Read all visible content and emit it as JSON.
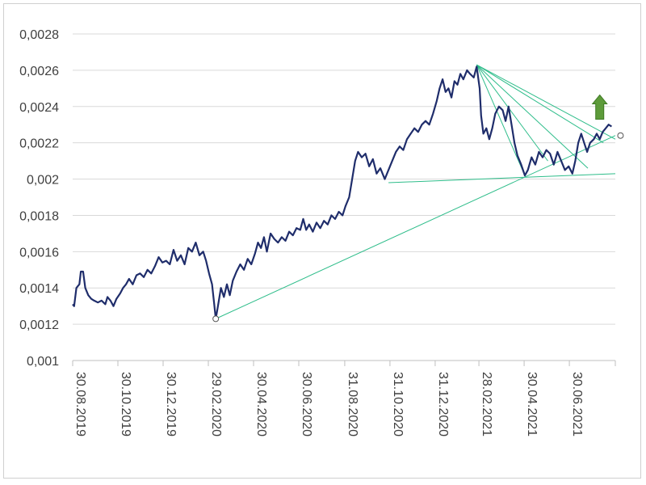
{
  "chart_data": {
    "type": "line",
    "title": "",
    "xlabel": "",
    "ylabel": "",
    "ylim": [
      0.001,
      0.0028
    ],
    "y_ticks": [
      "0,001",
      "0,0012",
      "0,0014",
      "0,0016",
      "0,0018",
      "0,002",
      "0,0022",
      "0,0024",
      "0,0026",
      "0,0028"
    ],
    "y_tick_values": [
      0.001,
      0.0012,
      0.0014,
      0.0016,
      0.0018,
      0.002,
      0.0022,
      0.0024,
      0.0026,
      0.0028
    ],
    "xlim": [
      "2019-08-30",
      "2021-08-31"
    ],
    "x_ticks": [
      {
        "label": "30.08.2019",
        "date": "2019-08-30"
      },
      {
        "label": "30.10.2019",
        "date": "2019-10-30"
      },
      {
        "label": "30.12.2019",
        "date": "2019-12-30"
      },
      {
        "label": "29.02.2020",
        "date": "2020-02-29"
      },
      {
        "label": "30.04.2020",
        "date": "2020-04-30"
      },
      {
        "label": "30.06.2020",
        "date": "2020-06-30"
      },
      {
        "label": "31.08.2020",
        "date": "2020-08-31"
      },
      {
        "label": "31.10.2020",
        "date": "2020-10-31"
      },
      {
        "label": "31.12.2020",
        "date": "2020-12-31"
      },
      {
        "label": "28.02.2021",
        "date": "2021-02-28"
      },
      {
        "label": "30.04.2021",
        "date": "2021-04-30"
      },
      {
        "label": "30.06.2021",
        "date": "2021-06-30"
      }
    ],
    "grid": true,
    "legend": "none",
    "series": [
      {
        "color": "#1f2d6b",
        "points": [
          [
            "2019-08-30",
            0.00131
          ],
          [
            "2019-09-01",
            0.0013
          ],
          [
            "2019-09-04",
            0.0014
          ],
          [
            "2019-09-08",
            0.00142
          ],
          [
            "2019-09-10",
            0.00149
          ],
          [
            "2019-09-13",
            0.00149
          ],
          [
            "2019-09-16",
            0.0014
          ],
          [
            "2019-09-20",
            0.00136
          ],
          [
            "2019-09-24",
            0.00134
          ],
          [
            "2019-09-28",
            0.00133
          ],
          [
            "2019-10-03",
            0.00132
          ],
          [
            "2019-10-08",
            0.00133
          ],
          [
            "2019-10-13",
            0.00131
          ],
          [
            "2019-10-16",
            0.00135
          ],
          [
            "2019-10-20",
            0.00133
          ],
          [
            "2019-10-24",
            0.0013
          ],
          [
            "2019-10-28",
            0.00134
          ],
          [
            "2019-11-02",
            0.00137
          ],
          [
            "2019-11-06",
            0.0014
          ],
          [
            "2019-11-10",
            0.00142
          ],
          [
            "2019-11-14",
            0.00145
          ],
          [
            "2019-11-19",
            0.00142
          ],
          [
            "2019-11-24",
            0.00147
          ],
          [
            "2019-11-29",
            0.00148
          ],
          [
            "2019-12-04",
            0.00146
          ],
          [
            "2019-12-09",
            0.0015
          ],
          [
            "2019-12-14",
            0.00148
          ],
          [
            "2019-12-19",
            0.00152
          ],
          [
            "2019-12-24",
            0.00157
          ],
          [
            "2019-12-29",
            0.00154
          ],
          [
            "2020-01-03",
            0.00155
          ],
          [
            "2020-01-08",
            0.00153
          ],
          [
            "2020-01-13",
            0.00161
          ],
          [
            "2020-01-18",
            0.00155
          ],
          [
            "2020-01-23",
            0.00158
          ],
          [
            "2020-01-28",
            0.00153
          ],
          [
            "2020-02-02",
            0.00162
          ],
          [
            "2020-02-07",
            0.0016
          ],
          [
            "2020-02-12",
            0.00165
          ],
          [
            "2020-02-17",
            0.00158
          ],
          [
            "2020-02-22",
            0.0016
          ],
          [
            "2020-02-26",
            0.00155
          ],
          [
            "2020-03-01",
            0.00148
          ],
          [
            "2020-03-05",
            0.00142
          ],
          [
            "2020-03-08",
            0.00131
          ],
          [
            "2020-03-10",
            0.00123
          ],
          [
            "2020-03-13",
            0.0013
          ],
          [
            "2020-03-17",
            0.0014
          ],
          [
            "2020-03-21",
            0.00135
          ],
          [
            "2020-03-25",
            0.00142
          ],
          [
            "2020-03-29",
            0.00136
          ],
          [
            "2020-04-02",
            0.00144
          ],
          [
            "2020-04-07",
            0.00149
          ],
          [
            "2020-04-12",
            0.00153
          ],
          [
            "2020-04-17",
            0.0015
          ],
          [
            "2020-04-22",
            0.00156
          ],
          [
            "2020-04-27",
            0.00153
          ],
          [
            "2020-05-02",
            0.00159
          ],
          [
            "2020-05-06",
            0.00165
          ],
          [
            "2020-05-10",
            0.00162
          ],
          [
            "2020-05-14",
            0.00168
          ],
          [
            "2020-05-18",
            0.0016
          ],
          [
            "2020-05-23",
            0.0017
          ],
          [
            "2020-05-28",
            0.00167
          ],
          [
            "2020-06-02",
            0.00165
          ],
          [
            "2020-06-07",
            0.00168
          ],
          [
            "2020-06-12",
            0.00166
          ],
          [
            "2020-06-17",
            0.00171
          ],
          [
            "2020-06-22",
            0.00169
          ],
          [
            "2020-06-27",
            0.00173
          ],
          [
            "2020-07-02",
            0.00172
          ],
          [
            "2020-07-06",
            0.00178
          ],
          [
            "2020-07-10",
            0.00172
          ],
          [
            "2020-07-14",
            0.00175
          ],
          [
            "2020-07-19",
            0.00171
          ],
          [
            "2020-07-24",
            0.00176
          ],
          [
            "2020-07-29",
            0.00173
          ],
          [
            "2020-08-03",
            0.00177
          ],
          [
            "2020-08-08",
            0.00175
          ],
          [
            "2020-08-13",
            0.0018
          ],
          [
            "2020-08-18",
            0.00178
          ],
          [
            "2020-08-23",
            0.00182
          ],
          [
            "2020-08-28",
            0.0018
          ],
          [
            "2020-09-01",
            0.00185
          ],
          [
            "2020-09-06",
            0.0019
          ],
          [
            "2020-09-10",
            0.002
          ],
          [
            "2020-09-14",
            0.0021
          ],
          [
            "2020-09-18",
            0.00215
          ],
          [
            "2020-09-23",
            0.00212
          ],
          [
            "2020-09-28",
            0.00214
          ],
          [
            "2020-10-03",
            0.00207
          ],
          [
            "2020-10-08",
            0.00211
          ],
          [
            "2020-10-13",
            0.00203
          ],
          [
            "2020-10-18",
            0.00206
          ],
          [
            "2020-10-24",
            0.002
          ],
          [
            "2020-10-29",
            0.00205
          ],
          [
            "2020-11-03",
            0.0021
          ],
          [
            "2020-11-08",
            0.00215
          ],
          [
            "2020-11-13",
            0.00218
          ],
          [
            "2020-11-18",
            0.00216
          ],
          [
            "2020-11-23",
            0.00222
          ],
          [
            "2020-11-28",
            0.00225
          ],
          [
            "2020-12-03",
            0.00228
          ],
          [
            "2020-12-08",
            0.00226
          ],
          [
            "2020-12-13",
            0.0023
          ],
          [
            "2020-12-18",
            0.00232
          ],
          [
            "2020-12-23",
            0.0023
          ],
          [
            "2020-12-28",
            0.00236
          ],
          [
            "2021-01-02",
            0.00243
          ],
          [
            "2021-01-06",
            0.0025
          ],
          [
            "2021-01-10",
            0.00255
          ],
          [
            "2021-01-14",
            0.00248
          ],
          [
            "2021-01-18",
            0.0025
          ],
          [
            "2021-01-22",
            0.00245
          ],
          [
            "2021-01-26",
            0.00254
          ],
          [
            "2021-01-30",
            0.00252
          ],
          [
            "2021-02-03",
            0.00258
          ],
          [
            "2021-02-07",
            0.00255
          ],
          [
            "2021-02-12",
            0.0026
          ],
          [
            "2021-02-16",
            0.00258
          ],
          [
            "2021-02-21",
            0.00256
          ],
          [
            "2021-02-25",
            0.00262
          ],
          [
            "2021-03-01",
            0.0025
          ],
          [
            "2021-03-03",
            0.00235
          ],
          [
            "2021-03-06",
            0.00225
          ],
          [
            "2021-03-10",
            0.00228
          ],
          [
            "2021-03-14",
            0.00222
          ],
          [
            "2021-03-18",
            0.00228
          ],
          [
            "2021-03-22",
            0.00236
          ],
          [
            "2021-03-27",
            0.0024
          ],
          [
            "2021-04-01",
            0.00238
          ],
          [
            "2021-04-05",
            0.00232
          ],
          [
            "2021-04-09",
            0.0024
          ],
          [
            "2021-04-13",
            0.0023
          ],
          [
            "2021-04-17",
            0.0022
          ],
          [
            "2021-04-21",
            0.00213
          ],
          [
            "2021-04-26",
            0.00208
          ],
          [
            "2021-05-01",
            0.00202
          ],
          [
            "2021-05-05",
            0.00205
          ],
          [
            "2021-05-10",
            0.00212
          ],
          [
            "2021-05-15",
            0.00208
          ],
          [
            "2021-05-20",
            0.00215
          ],
          [
            "2021-05-25",
            0.00212
          ],
          [
            "2021-05-30",
            0.00216
          ],
          [
            "2021-06-04",
            0.00214
          ],
          [
            "2021-06-09",
            0.00208
          ],
          [
            "2021-06-14",
            0.00215
          ],
          [
            "2021-06-19",
            0.0021
          ],
          [
            "2021-06-24",
            0.00205
          ],
          [
            "2021-06-29",
            0.00207
          ],
          [
            "2021-07-04",
            0.00203
          ],
          [
            "2021-07-08",
            0.0021
          ],
          [
            "2021-07-12",
            0.0022
          ],
          [
            "2021-07-16",
            0.00225
          ],
          [
            "2021-07-20",
            0.0022
          ],
          [
            "2021-07-24",
            0.00215
          ],
          [
            "2021-07-28",
            0.0022
          ],
          [
            "2021-08-02",
            0.00222
          ],
          [
            "2021-08-06",
            0.00225
          ],
          [
            "2021-08-10",
            0.00222
          ],
          [
            "2021-08-14",
            0.00226
          ],
          [
            "2021-08-18",
            0.00228
          ],
          [
            "2021-08-22",
            0.0023
          ],
          [
            "2021-08-26",
            0.00229
          ]
        ]
      }
    ],
    "trendlines": [
      {
        "color": "#2ebd8a",
        "from": [
          "2020-03-10",
          0.00123
        ],
        "to": [
          "2021-08-31",
          0.00224
        ]
      },
      {
        "color": "#2ebd8a",
        "from": [
          "2020-10-29",
          0.00198
        ],
        "to": [
          "2021-08-31",
          0.00203
        ]
      },
      {
        "color": "#2ebd8a",
        "from": [
          "2021-02-25",
          0.00263
        ],
        "to": [
          "2021-08-31",
          0.00222
        ]
      },
      {
        "color": "#2ebd8a",
        "from": [
          "2021-02-25",
          0.00263
        ],
        "to": [
          "2021-08-15",
          0.0022
        ]
      },
      {
        "color": "#2ebd8a",
        "from": [
          "2021-02-25",
          0.00263
        ],
        "to": [
          "2021-07-25",
          0.00206
        ]
      },
      {
        "color": "#2ebd8a",
        "from": [
          "2021-02-25",
          0.00263
        ],
        "to": [
          "2021-06-01",
          0.0021
        ]
      },
      {
        "color": "#2ebd8a",
        "from": [
          "2021-02-25",
          0.00263
        ],
        "to": [
          "2021-05-02",
          0.00201
        ]
      }
    ],
    "markers": [
      {
        "shape": "open-circle",
        "at": [
          "2020-03-10",
          0.00123
        ]
      },
      {
        "shape": "open-circle",
        "at": [
          "2021-09-07",
          0.00224
        ]
      }
    ],
    "arrow": {
      "direction": "up",
      "color": "#5d9b3a",
      "at": [
        "2021-08-10",
        0.00233
      ]
    }
  }
}
